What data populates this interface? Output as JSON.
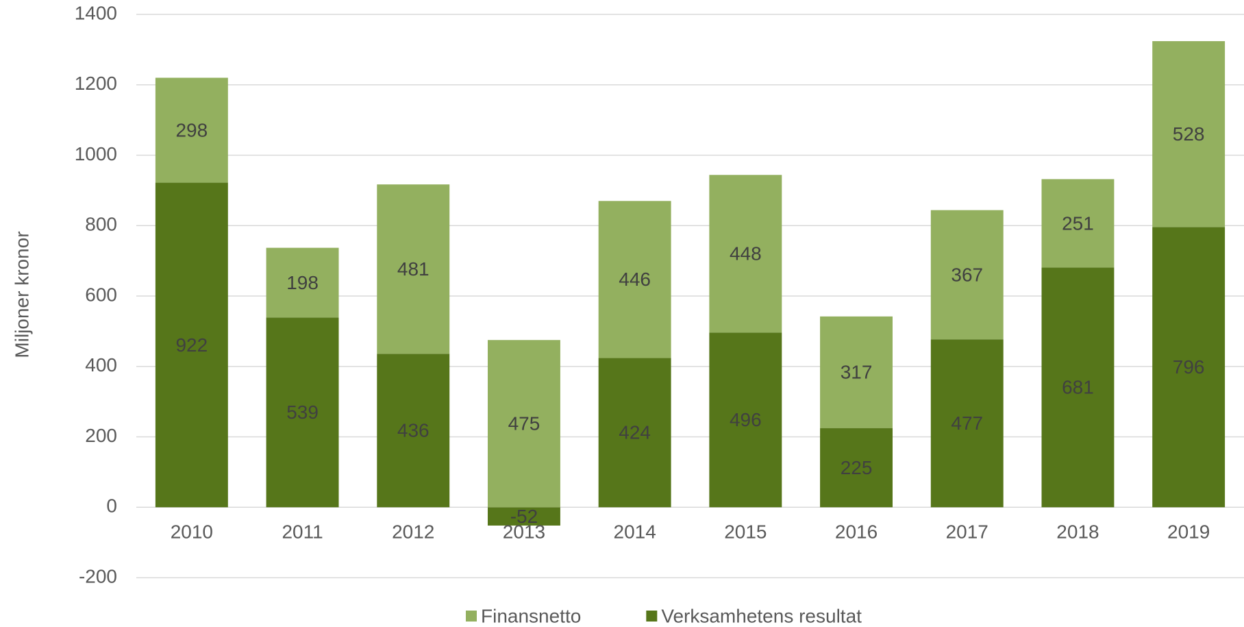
{
  "chart_data": {
    "type": "stacked_bar",
    "y_label": "Miljoner kronor",
    "categories": [
      "2010",
      "2011",
      "2012",
      "2013",
      "2014",
      "2015",
      "2016",
      "2017",
      "2018",
      "2019"
    ],
    "series": [
      {
        "name": "Finansnetto",
        "color": "#93b05f",
        "values": [
          298,
          198,
          481,
          475,
          446,
          448,
          317,
          367,
          251,
          528
        ]
      },
      {
        "name": "Verksamhetens resultat",
        "color": "#56761a",
        "values": [
          922,
          539,
          436,
          -52,
          424,
          496,
          225,
          477,
          681,
          796
        ]
      }
    ],
    "ylim": [
      -200,
      1400
    ],
    "yticks": [
      -200,
      0,
      200,
      400,
      600,
      800,
      1000,
      1200,
      1400
    ],
    "grid": true,
    "legend": "bottom"
  }
}
